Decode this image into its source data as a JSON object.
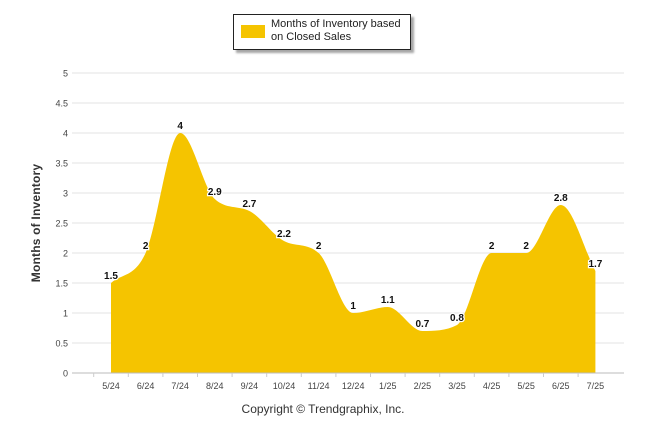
{
  "chart_data": {
    "type": "area",
    "categories": [
      "5/24",
      "6/24",
      "7/24",
      "8/24",
      "9/24",
      "10/24",
      "11/24",
      "12/24",
      "1/25",
      "2/25",
      "3/25",
      "4/25",
      "5/25",
      "6/25",
      "7/25"
    ],
    "series": [
      {
        "name": "Months of Inventory based on Closed Sales",
        "values": [
          1.5,
          2,
          4,
          2.9,
          2.7,
          2.2,
          2,
          1,
          1.1,
          0.7,
          0.8,
          2,
          2,
          2.8,
          1.7
        ],
        "data_labels": [
          "1.5",
          "2",
          "4",
          "2.9",
          "2.7",
          "2.2",
          "2",
          "1",
          "1.1",
          "0.7",
          "0.8",
          "2",
          "2",
          "2.8",
          "1.7"
        ]
      }
    ],
    "ylabel": "Months of Inventory",
    "ylim": [
      0,
      5
    ],
    "yticks": [
      "0",
      "0.5",
      "1",
      "1.5",
      "2",
      "2.5",
      "3",
      "3.5",
      "4",
      "4.5",
      "5"
    ],
    "grid": true,
    "legend_position": "top-center",
    "fill_color": "#f5c400"
  },
  "legend": {
    "label": "Months of Inventory based on Closed Sales"
  },
  "footer": {
    "copyright": "Copyright © Trendgraphix, Inc."
  }
}
